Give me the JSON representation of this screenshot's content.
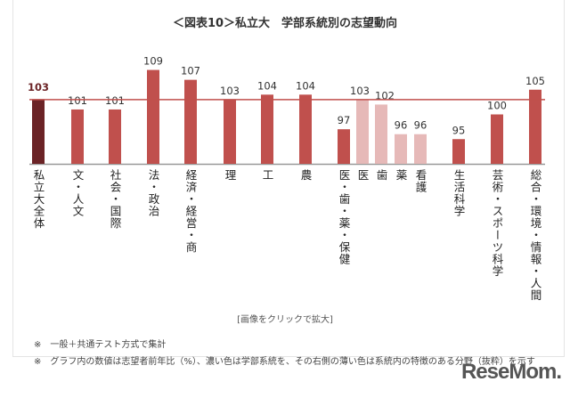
{
  "chart_data": {
    "type": "bar",
    "title": "＜図表10＞私立大　学部系統別の志望動向",
    "categories": [
      "私立大全体",
      "文・人文",
      "社会・国際",
      "法・政治",
      "経済・経営・商",
      "理",
      "工",
      "農",
      "医・歯・薬・保健",
      "医",
      "歯",
      "薬",
      "看護",
      "生活科学",
      "芸術・スポーツ科学",
      "総合・環境・情報・人間"
    ],
    "values": [
      103,
      101,
      101,
      109,
      107,
      103,
      104,
      104,
      97,
      103,
      102,
      96,
      96,
      95,
      100,
      105
    ],
    "kinds": [
      "total",
      "main",
      "main",
      "main",
      "main",
      "main",
      "main",
      "main",
      "main",
      "sub",
      "sub",
      "sub",
      "sub",
      "main",
      "main",
      "main"
    ],
    "reference_line": 103,
    "ylim": [
      90,
      110
    ],
    "grid": false,
    "colors": {
      "total": "#6b2326",
      "main": "#c0504d",
      "sub": "#e6b9b8",
      "reference": "#c0504d",
      "total_label": "#6b2326"
    }
  },
  "caption": "[画像をクリックで拡大]",
  "notes": [
    "※　一般＋共通テスト方式で集計",
    "※　グラフ内の数値は志望者前年比（%）、濃い色は学部系統を、その右側の薄い色は系統内の特徴のある分野（抜粋）を示す"
  ],
  "logo": "ReseMom"
}
